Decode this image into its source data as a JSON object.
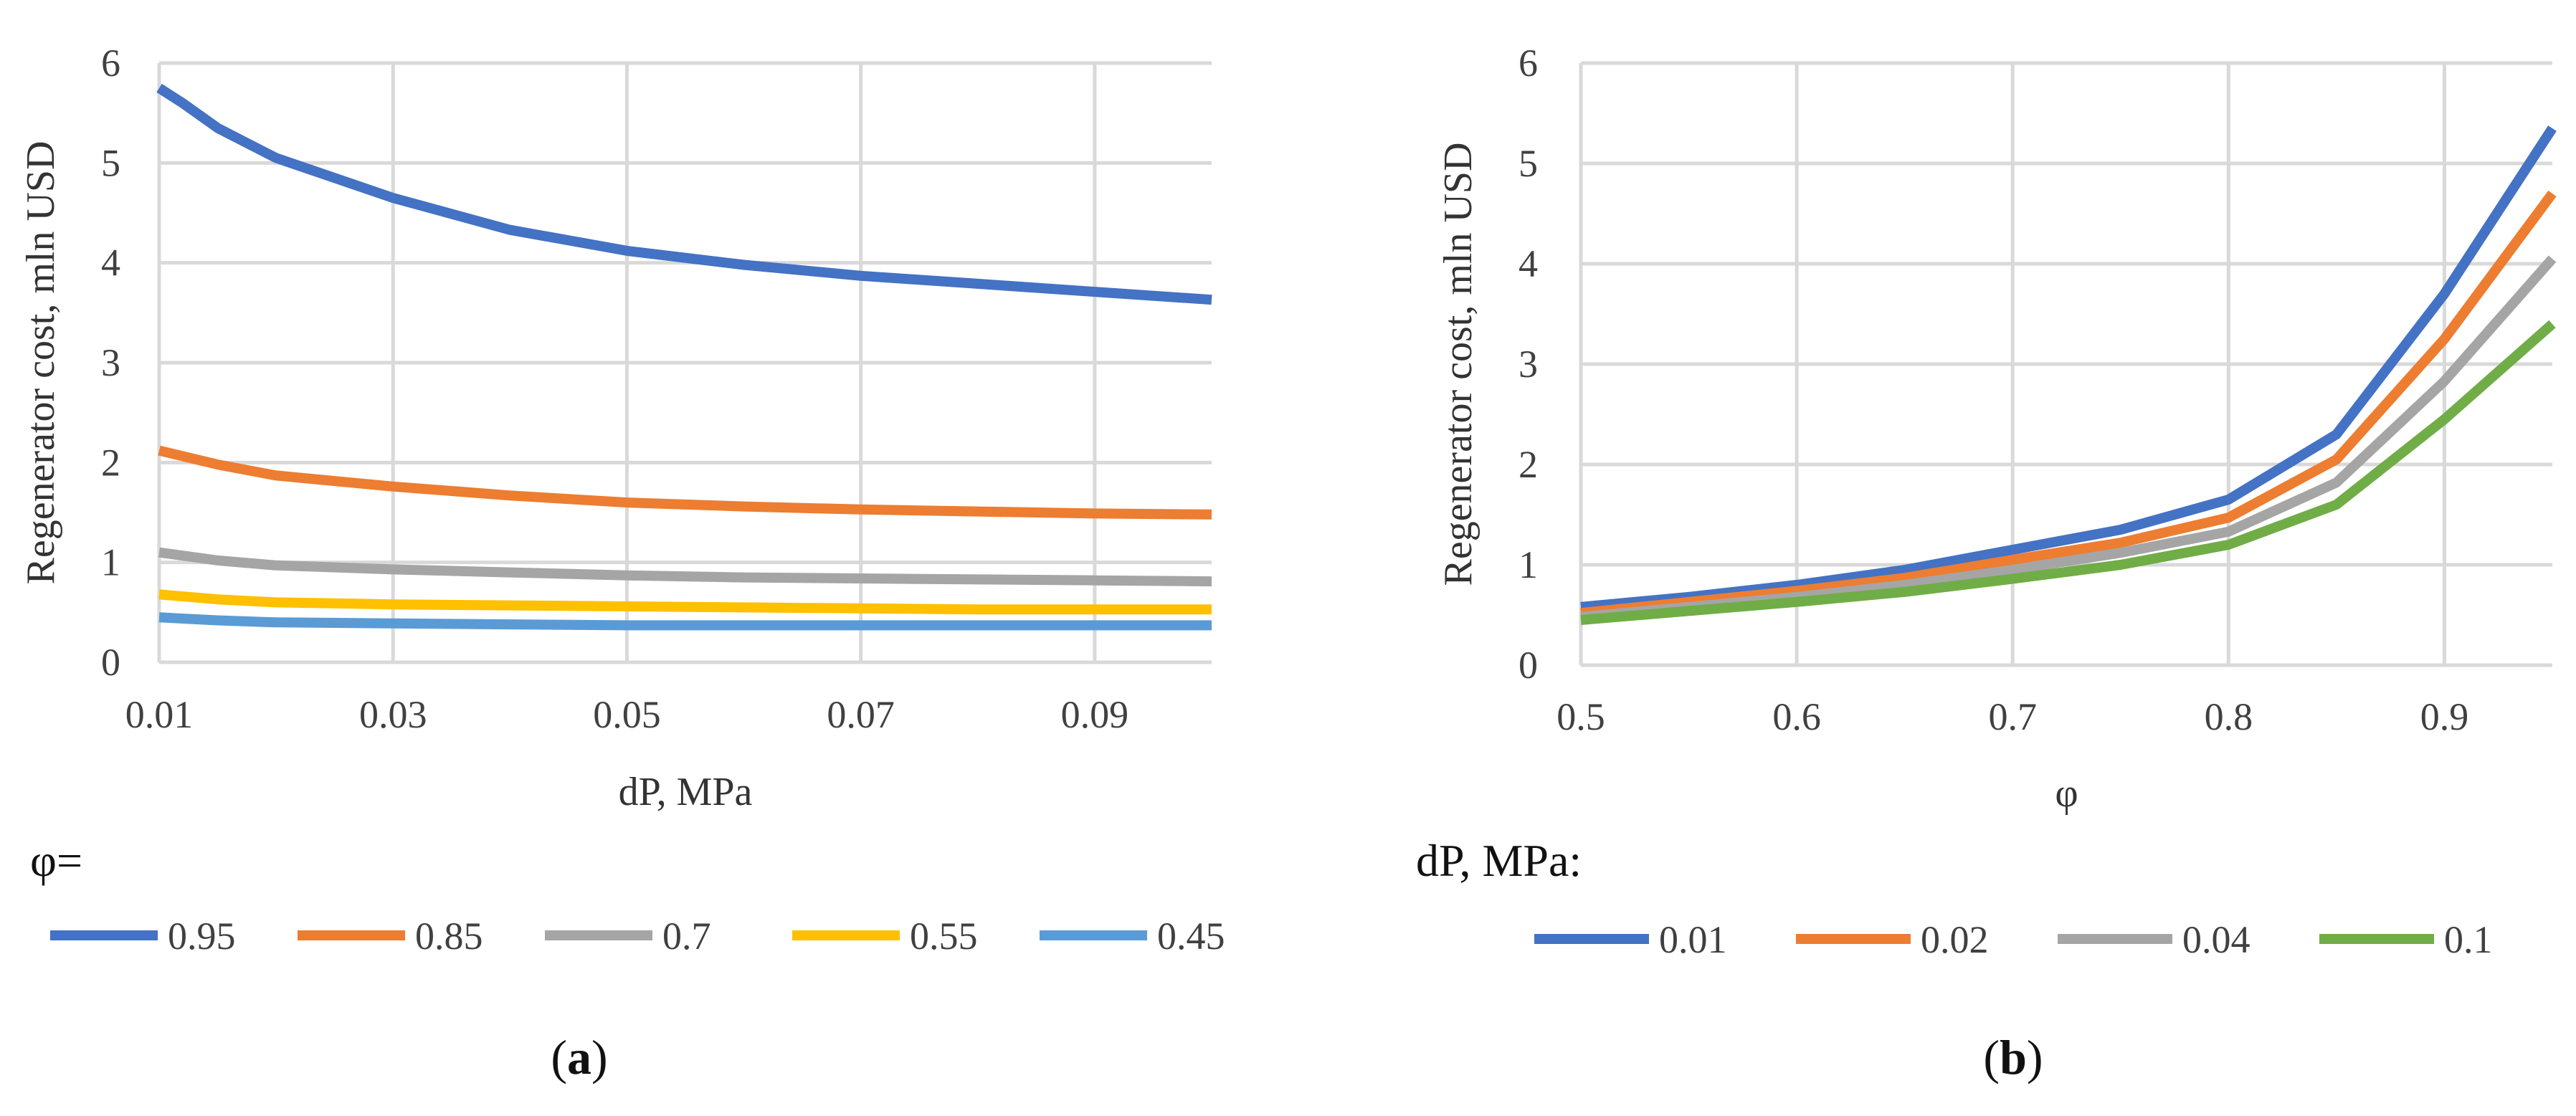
{
  "chart_data": [
    {
      "type": "line",
      "panel_label": "a",
      "xlabel": "dP, MPa",
      "ylabel": "Regenerator cost, mln USD",
      "xlim": [
        0.01,
        0.1
      ],
      "ylim": [
        0,
        6
      ],
      "xticks": [
        "0.01",
        "0.03",
        "0.05",
        "0.07",
        "0.09"
      ],
      "xtick_values": [
        0.01,
        0.03,
        0.05,
        0.07,
        0.09
      ],
      "yticks": [
        "0",
        "1",
        "2",
        "3",
        "4",
        "5",
        "6"
      ],
      "ytick_values": [
        0,
        1,
        2,
        3,
        4,
        5,
        6
      ],
      "grid": true,
      "legend_title": "φ=",
      "legend_placement": "bottom",
      "series": [
        {
          "name": "0.95",
          "color": "#4472C4",
          "x": [
            0.01,
            0.012,
            0.015,
            0.02,
            0.03,
            0.04,
            0.05,
            0.06,
            0.07,
            0.08,
            0.09,
            0.1
          ],
          "y": [
            5.75,
            5.6,
            5.35,
            5.05,
            4.65,
            4.33,
            4.12,
            3.98,
            3.87,
            3.79,
            3.71,
            3.63
          ]
        },
        {
          "name": "0.85",
          "color": "#ED7D31",
          "x": [
            0.01,
            0.015,
            0.02,
            0.03,
            0.04,
            0.05,
            0.06,
            0.07,
            0.08,
            0.09,
            0.1
          ],
          "y": [
            2.12,
            1.98,
            1.87,
            1.76,
            1.67,
            1.6,
            1.56,
            1.53,
            1.51,
            1.49,
            1.48
          ]
        },
        {
          "name": "0.7",
          "color": "#A5A5A5",
          "x": [
            0.01,
            0.015,
            0.02,
            0.03,
            0.04,
            0.05,
            0.06,
            0.07,
            0.08,
            0.09,
            0.1
          ],
          "y": [
            1.1,
            1.02,
            0.97,
            0.93,
            0.9,
            0.87,
            0.85,
            0.84,
            0.83,
            0.82,
            0.81
          ]
        },
        {
          "name": "0.55",
          "color": "#FFC000",
          "x": [
            0.01,
            0.015,
            0.02,
            0.03,
            0.04,
            0.05,
            0.06,
            0.07,
            0.08,
            0.09,
            0.1
          ],
          "y": [
            0.68,
            0.63,
            0.6,
            0.58,
            0.57,
            0.56,
            0.55,
            0.54,
            0.53,
            0.53,
            0.53
          ]
        },
        {
          "name": "0.45",
          "color": "#5B9BD5",
          "x": [
            0.01,
            0.015,
            0.02,
            0.03,
            0.04,
            0.05,
            0.06,
            0.07,
            0.08,
            0.09,
            0.1
          ],
          "y": [
            0.45,
            0.42,
            0.4,
            0.39,
            0.38,
            0.37,
            0.37,
            0.37,
            0.37,
            0.37,
            0.37
          ]
        }
      ]
    },
    {
      "type": "line",
      "panel_label": "b",
      "xlabel": "φ",
      "ylabel": "Regenerator cost, mln USD",
      "xlim": [
        0.5,
        0.95
      ],
      "ylim": [
        0,
        6
      ],
      "xticks": [
        "0.5",
        "0.6",
        "0.7",
        "0.8",
        "0.9"
      ],
      "xtick_values": [
        0.5,
        0.6,
        0.7,
        0.8,
        0.9
      ],
      "yticks": [
        "0",
        "1",
        "2",
        "3",
        "4",
        "5",
        "6"
      ],
      "ytick_values": [
        0,
        1,
        2,
        3,
        4,
        5,
        6
      ],
      "grid": true,
      "legend_title": "dP, MPa:",
      "legend_placement": "bottom",
      "series": [
        {
          "name": "0.01",
          "color": "#4472C4",
          "x": [
            0.5,
            0.55,
            0.6,
            0.65,
            0.7,
            0.75,
            0.8,
            0.85,
            0.9,
            0.95
          ],
          "y": [
            0.58,
            0.68,
            0.8,
            0.95,
            1.15,
            1.35,
            1.65,
            2.3,
            3.7,
            5.35
          ]
        },
        {
          "name": "0.02",
          "color": "#ED7D31",
          "x": [
            0.5,
            0.55,
            0.6,
            0.65,
            0.7,
            0.75,
            0.8,
            0.85,
            0.9,
            0.95
          ],
          "y": [
            0.52,
            0.63,
            0.74,
            0.87,
            1.05,
            1.22,
            1.47,
            2.05,
            3.25,
            4.7
          ]
        },
        {
          "name": "0.04",
          "color": "#A5A5A5",
          "x": [
            0.5,
            0.55,
            0.6,
            0.65,
            0.7,
            0.75,
            0.8,
            0.85,
            0.9,
            0.95
          ],
          "y": [
            0.48,
            0.58,
            0.68,
            0.8,
            0.95,
            1.12,
            1.33,
            1.82,
            2.83,
            4.05
          ]
        },
        {
          "name": "0.1",
          "color": "#70AD47",
          "x": [
            0.5,
            0.55,
            0.6,
            0.65,
            0.7,
            0.75,
            0.8,
            0.85,
            0.9,
            0.95
          ],
          "y": [
            0.45,
            0.54,
            0.63,
            0.73,
            0.86,
            1.0,
            1.2,
            1.6,
            2.45,
            3.4
          ]
        }
      ]
    }
  ]
}
